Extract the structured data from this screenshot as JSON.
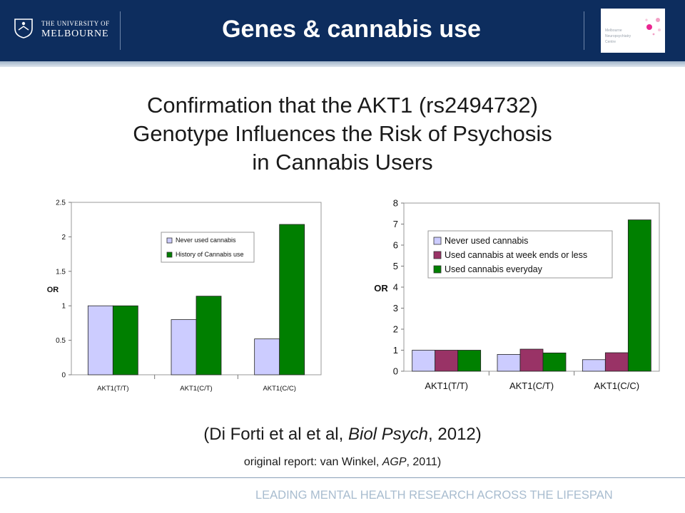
{
  "header": {
    "university_line1": "THE UNIVERSITY OF",
    "university_line2": "MELBOURNE",
    "title": "Genes & cannabis use",
    "centre_logo_lines": [
      "Melbourne",
      "Neuropsychiatry",
      "Centre"
    ]
  },
  "slide": {
    "title_lines": [
      "Confirmation that the AKT1 (rs2494732)",
      "Genotype Influences the Risk of Psychosis",
      "in Cannabis Users"
    ],
    "citation": {
      "pre": "(Di Forti et al et al, ",
      "journal": "Biol Psych",
      "post": ", 2012)"
    },
    "original_report": {
      "pre": "original report: van Winkel, ",
      "journal": "AGP",
      "post": ", 2011)"
    },
    "footer": "LEADING MENTAL HEALTH RESEARCH ACROSS THE LIFESPAN"
  },
  "colors": {
    "header_bg": "#0d2d5e",
    "never_used": "#ccccff",
    "history_use": "#007f00",
    "weekend_use": "#993366",
    "everyday_use": "#008000"
  },
  "chart_data": [
    {
      "type": "bar",
      "categories": [
        "AKT1(T/T)",
        "AKT1(C/T)",
        "AKT1(C/C)"
      ],
      "series": [
        {
          "name": "Never used cannabis",
          "values": [
            1.0,
            0.8,
            0.52
          ],
          "color": "#ccccff"
        },
        {
          "name": "History of Cannabis use",
          "values": [
            1.0,
            1.14,
            2.18
          ],
          "color": "#007f00"
        }
      ],
      "ylabel": "OR",
      "ylim": [
        0,
        2.5
      ],
      "yticks": [
        "0",
        "0.5",
        "1",
        "1.5",
        "2",
        "2.5"
      ],
      "grid": false,
      "legend": "upper center"
    },
    {
      "type": "bar",
      "categories": [
        "AKT1(T/T)",
        "AKT1(C/T)",
        "AKT1(C/C)"
      ],
      "series": [
        {
          "name": "Never used cannabis",
          "values": [
            1.0,
            0.8,
            0.55
          ],
          "color": "#ccccff"
        },
        {
          "name": "Used cannabis at week ends or less",
          "values": [
            1.0,
            1.05,
            0.88
          ],
          "color": "#993366"
        },
        {
          "name": "Used cannabis everyday",
          "values": [
            1.0,
            0.87,
            7.2
          ],
          "color": "#008000"
        }
      ],
      "ylabel": "OR",
      "ylim": [
        0,
        8
      ],
      "yticks": [
        "0",
        "1",
        "2",
        "3",
        "4",
        "5",
        "6",
        "7",
        "8"
      ],
      "grid": false,
      "legend": "upper left"
    }
  ]
}
